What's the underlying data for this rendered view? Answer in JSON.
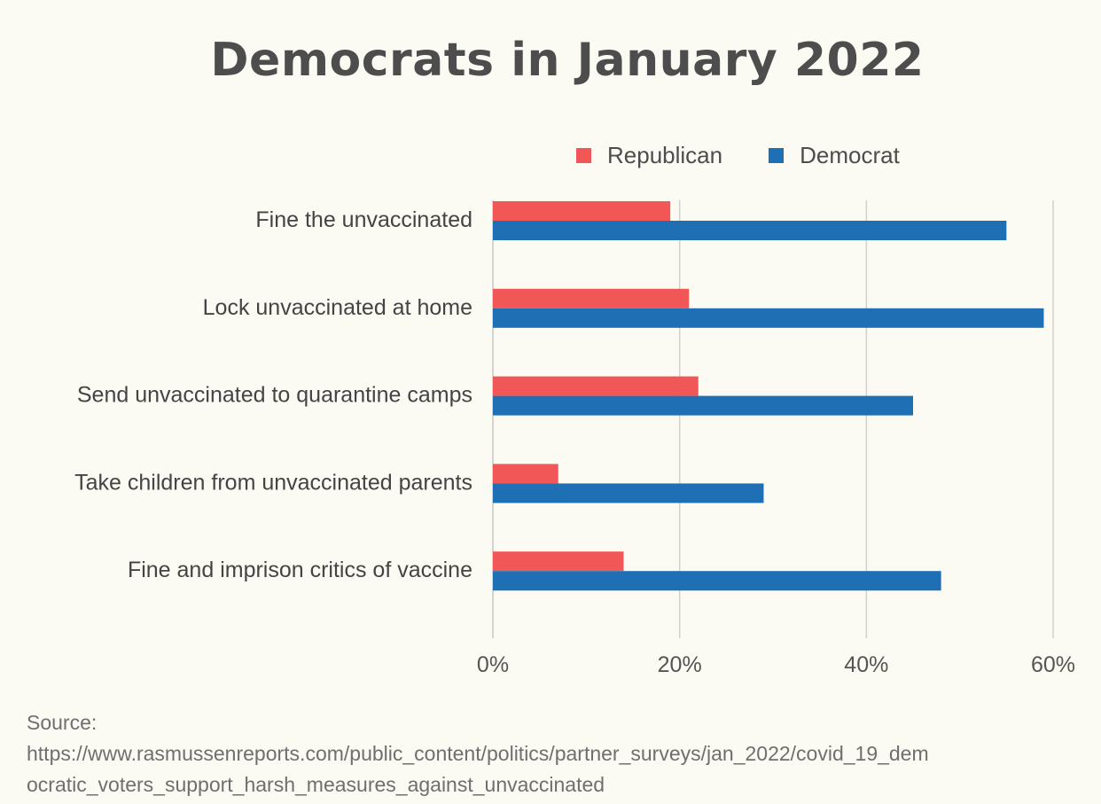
{
  "chart_data": {
    "type": "bar",
    "orientation": "horizontal",
    "title": "Democrats in January 2022",
    "categories": [
      "Fine the unvaccinated",
      "Lock unvaccinated at home",
      "Send unvaccinated to quarantine camps",
      "Take children from unvaccinated parents",
      "Fine and imprison critics of vaccine"
    ],
    "series": [
      {
        "name": "Republican",
        "color": "#f25757",
        "values": [
          19,
          21,
          22,
          7,
          14
        ]
      },
      {
        "name": "Democrat",
        "color": "#1f6fb4",
        "values": [
          55,
          59,
          45,
          29,
          48
        ]
      }
    ],
    "xlim": [
      0,
      60
    ],
    "xticks": [
      "0%",
      "20%",
      "40%",
      "60%"
    ],
    "grid": true,
    "legend_position": "top-right"
  },
  "source": {
    "label": "Source:",
    "url_line1": "https://www.rasmussenreports.com/public_content/politics/partner_surveys/jan_2022/covid_19_dem",
    "url_line2": "ocratic_voters_support_harsh_measures_against_unvaccinated"
  }
}
